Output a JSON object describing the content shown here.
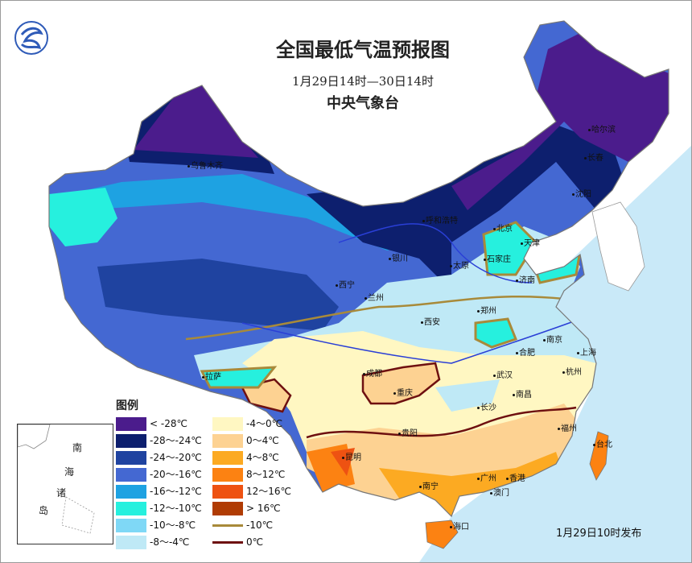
{
  "title": "全国最低气温预报图",
  "period": "1月29日14时—30日14时",
  "agency": "中央气象台",
  "issued": "1月29日10时发布",
  "logo": {
    "icon": "cma-logo"
  },
  "legend": {
    "title": "图例",
    "fills": [
      {
        "label": "< -28℃",
        "color": "#4b1c8c"
      },
      {
        "label": "-28～-24℃",
        "color": "#0d1f6e"
      },
      {
        "label": "-24～-20℃",
        "color": "#1f43a0"
      },
      {
        "label": "-20～-16℃",
        "color": "#4468d2"
      },
      {
        "label": "-16～-12℃",
        "color": "#1ea2e2"
      },
      {
        "label": "-12～-10℃",
        "color": "#26f0de"
      },
      {
        "label": "-10～-8℃",
        "color": "#7fd8f6"
      },
      {
        "label": "-8～-4℃",
        "color": "#bfe9f6"
      },
      {
        "label": "-4～0℃",
        "color": "#fff7c2"
      },
      {
        "label": "0～4℃",
        "color": "#fdd292"
      },
      {
        "label": "4～8℃",
        "color": "#fcaa22"
      },
      {
        "label": "8～12℃",
        "color": "#fc8212"
      },
      {
        "label": "12～16℃",
        "color": "#ee5212"
      },
      {
        "label": "> 16℃",
        "color": "#b03c04"
      }
    ],
    "lines": [
      {
        "label": "-10℃",
        "color": "#a88a3a"
      },
      {
        "label": "0℃",
        "color": "#6e1010"
      }
    ]
  },
  "inset": {
    "labels": [
      "南",
      "海",
      "诸",
      "岛"
    ]
  },
  "cities": [
    "乌鲁木齐",
    "哈尔滨",
    "长春",
    "沈阳",
    "呼和浩特",
    "北京",
    "天津",
    "石家庄",
    "太原",
    "银川",
    "西宁",
    "兰州",
    "济南",
    "郑州",
    "西安",
    "合肥",
    "南京",
    "上海",
    "武汉",
    "杭州",
    "成都",
    "重庆",
    "拉萨",
    "长沙",
    "南昌",
    "贵阳",
    "福州",
    "台北",
    "昆明",
    "南宁",
    "广州",
    "香港",
    "澳门",
    "海口"
  ],
  "ocean_color": "#c9e9f8"
}
